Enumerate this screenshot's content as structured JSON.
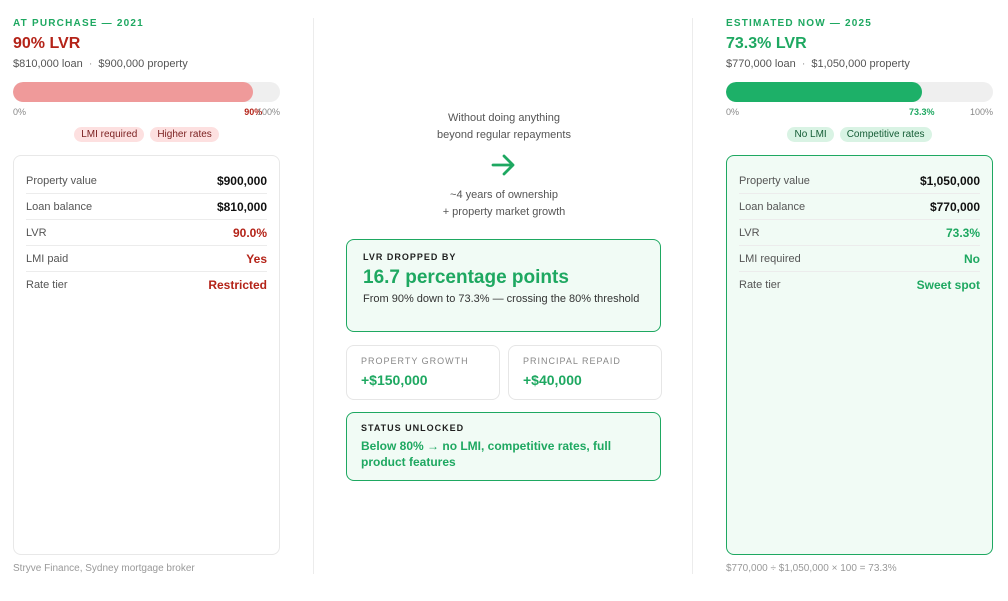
{
  "left": {
    "eyebrow": "AT PURCHASE — 2021",
    "title": "90% LVR",
    "loan": "$810,000 loan",
    "property": "$900,000 property",
    "lvr_percent": 90,
    "tick_min": "0%",
    "tick_val": "90%",
    "tick_max": "100%",
    "pills": [
      "LMI required",
      "Higher rates"
    ],
    "rows": [
      {
        "label": "Property value",
        "value": "$900,000"
      },
      {
        "label": "Loan balance",
        "value": "$810,000"
      },
      {
        "label": "LVR",
        "value": "90.0%"
      },
      {
        "label": "LMI paid",
        "value": "Yes"
      },
      {
        "label": "Rate tier",
        "value": "Restricted"
      }
    ],
    "footer": "Stryve Finance, Sydney mortgage broker"
  },
  "middle": {
    "line1": "Without doing anything",
    "line2": "beyond regular repayments",
    "arrow": "→",
    "line3": "~4 years of ownership",
    "line4": "+ property market growth",
    "dropped_label": "LVR DROPPED BY",
    "dropped_value": "16.7 percentage points",
    "dropped_desc": "From 90% down to 73.3% — crossing the 80% threshold",
    "growth_label": "PROPERTY GROWTH",
    "growth_value": "+$150,000",
    "repaid_label": "PRINCIPAL REPAID",
    "repaid_value": "+$40,000",
    "status_label": "STATUS UNLOCKED",
    "status_value": "Below 80% → no LMI, competitive rates, full product features"
  },
  "right": {
    "eyebrow": "ESTIMATED NOW — 2025",
    "title": "73.3% LVR",
    "loan": "$770,000 loan",
    "property": "$1,050,000 property",
    "lvr_percent": 73.3,
    "tick_min": "0%",
    "tick_val": "73.3%",
    "tick_max": "100%",
    "pills": [
      "No LMI",
      "Competitive rates"
    ],
    "rows": [
      {
        "label": "Property value",
        "value": "$1,050,000"
      },
      {
        "label": "Loan balance",
        "value": "$770,000"
      },
      {
        "label": "LVR",
        "value": "73.3%"
      },
      {
        "label": "LMI required",
        "value": "No"
      },
      {
        "label": "Rate tier",
        "value": "Sweet spot"
      }
    ],
    "footer": "$770,000 ÷ $1,050,000 × 100 = 73.3%"
  },
  "colors": {
    "red": "#b42318",
    "red_fill": "#ef9a9a",
    "green": "#1ea861",
    "green_fill": "#1db068"
  }
}
